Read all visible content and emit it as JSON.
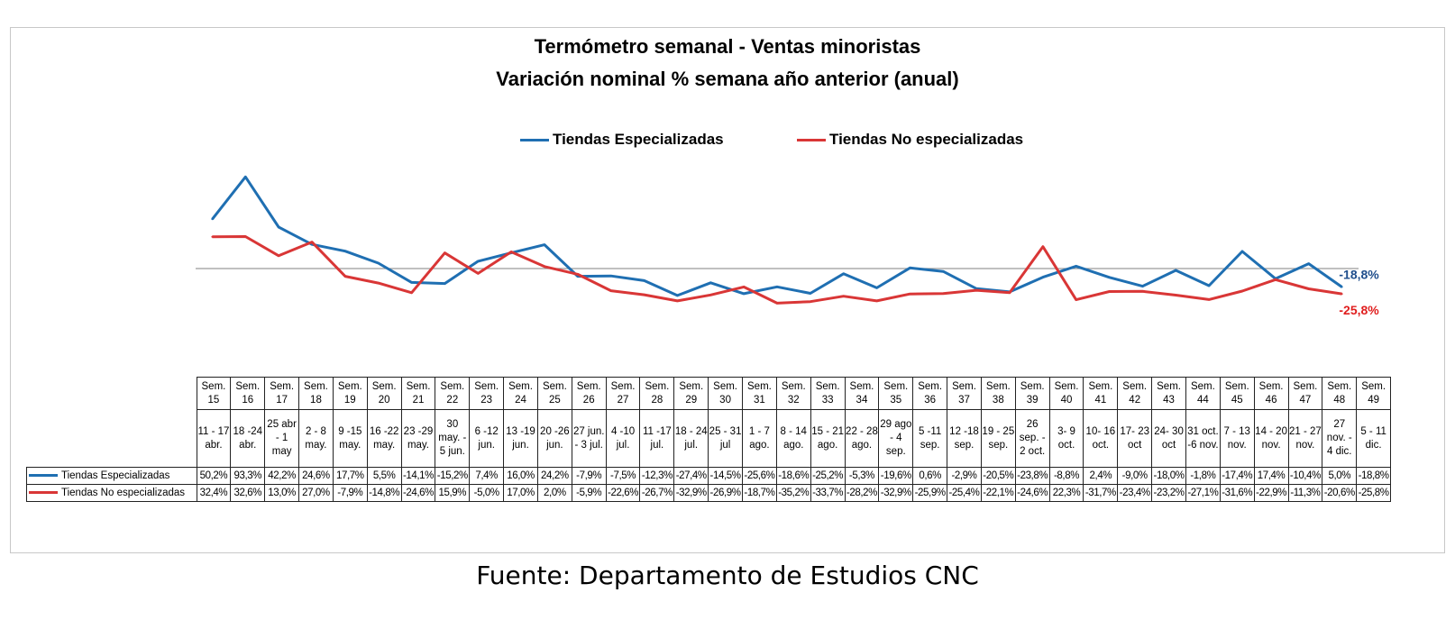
{
  "chart_data": {
    "type": "line",
    "title": "Termómetro semanal - Ventas minoristas",
    "subtitle": "Variación nominal % semana año anterior (anual)",
    "categories": [
      "Sem. 15",
      "Sem. 16",
      "Sem. 17",
      "Sem. 18",
      "Sem. 19",
      "Sem. 20",
      "Sem. 21",
      "Sem. 22",
      "Sem. 23",
      "Sem. 24",
      "Sem. 25",
      "Sem. 26",
      "Sem. 27",
      "Sem. 28",
      "Sem. 29",
      "Sem. 30",
      "Sem. 31",
      "Sem. 32",
      "Sem. 33",
      "Sem. 34",
      "Sem. 35",
      "Sem. 36",
      "Sem. 37",
      "Sem. 38",
      "Sem. 39",
      "Sem. 40",
      "Sem. 41",
      "Sem. 42",
      "Sem. 43",
      "Sem. 44",
      "Sem. 45",
      "Sem. 46",
      "Sem. 47",
      "Sem. 48",
      "Sem. 49"
    ],
    "dates": [
      "11 - 17 abr.",
      "18 -24 abr.",
      "25 abr - 1 may",
      "2 - 8 may.",
      "9 -15 may.",
      "16 -22 may.",
      "23 -29 may.",
      "30 may. - 5 jun.",
      "6 -12 jun.",
      "13 -19 jun.",
      "20 -26 jun.",
      "27 jun. - 3 jul.",
      "4 -10 jul.",
      "11 -17 jul.",
      "18 - 24 jul.",
      "25 - 31 jul",
      "1 - 7 ago.",
      "8 - 14 ago.",
      "15 - 21 ago.",
      "22 - 28 ago.",
      "29 ago - 4 sep.",
      "5 -11 sep.",
      "12 -18 sep.",
      "19 - 25 sep.",
      "26 sep. - 2 oct.",
      "3- 9 oct.",
      "10- 16 oct.",
      "17- 23 oct",
      "24- 30 oct",
      "31 oct. -6 nov.",
      "7 - 13 nov.",
      "14 - 20 nov.",
      "21 - 27 nov.",
      "27 nov. - 4 dic.",
      "5 - 11 dic."
    ],
    "series": [
      {
        "name": "Tiendas Especializadas",
        "color": "#1f6fb2",
        "values": [
          50.2,
          93.3,
          42.2,
          24.6,
          17.7,
          5.5,
          -14.1,
          -15.2,
          7.4,
          16.0,
          24.2,
          -7.9,
          -7.5,
          -12.3,
          -27.4,
          -14.5,
          -25.6,
          -18.6,
          -25.2,
          -5.3,
          -19.6,
          0.6,
          -2.9,
          -20.5,
          -23.8,
          -8.8,
          2.4,
          -9.0,
          -18.0,
          -1.8,
          -17.4,
          17.4,
          -10.4,
          5.0,
          -18.8
        ],
        "labels": [
          "50,2%",
          "93,3%",
          "42,2%",
          "24,6%",
          "17,7%",
          "5,5%",
          "-14,1%",
          "-15,2%",
          "7,4%",
          "16,0%",
          "24,2%",
          "-7,9%",
          "-7,5%",
          "-12,3%",
          "-27,4%",
          "-14,5%",
          "-25,6%",
          "-18,6%",
          "-25,2%",
          "-5,3%",
          "-19,6%",
          "0,6%",
          "-2,9%",
          "-20,5%",
          "-23,8%",
          "-8,8%",
          "2,4%",
          "-9,0%",
          "-18,0%",
          "-1,8%",
          "-17,4%",
          "17,4%",
          "-10,4%",
          "5,0%",
          "-18,8%"
        ],
        "end_label": "-18,8%"
      },
      {
        "name": "Tiendas No especializadas",
        "color": "#d93636",
        "values": [
          32.4,
          32.6,
          13.0,
          27.0,
          -7.9,
          -14.8,
          -24.6,
          15.9,
          -5.0,
          17.0,
          2.0,
          -5.9,
          -22.6,
          -26.7,
          -32.9,
          -26.9,
          -18.7,
          -35.2,
          -33.7,
          -28.2,
          -32.9,
          -25.9,
          -25.4,
          -22.1,
          -24.6,
          22.3,
          -31.7,
          -23.4,
          -23.2,
          -27.1,
          -31.6,
          -22.9,
          -11.3,
          -20.6,
          -25.8
        ],
        "labels": [
          "32,4%",
          "32,6%",
          "13,0%",
          "27,0%",
          "-7,9%",
          "-14,8%",
          "-24,6%",
          "15,9%",
          "-5,0%",
          "17,0%",
          "2,0%",
          "-5,9%",
          "-22,6%",
          "-26,7%",
          "-32,9%",
          "-26,9%",
          "-18,7%",
          "-35,2%",
          "-33,7%",
          "-28,2%",
          "-32,9%",
          "-25,9%",
          "-25,4%",
          "-22,1%",
          "-24,6%",
          "22,3%",
          "-31,7%",
          "-23,4%",
          "-23,2%",
          "-27,1%",
          "-31,6%",
          "-22,9%",
          "-11,3%",
          "-20,6%",
          "-25,8%"
        ],
        "end_label": "-25,8%"
      }
    ],
    "grid": false,
    "legend": "top-center",
    "source": "Fuente: Departamento de Estudios CNC"
  }
}
